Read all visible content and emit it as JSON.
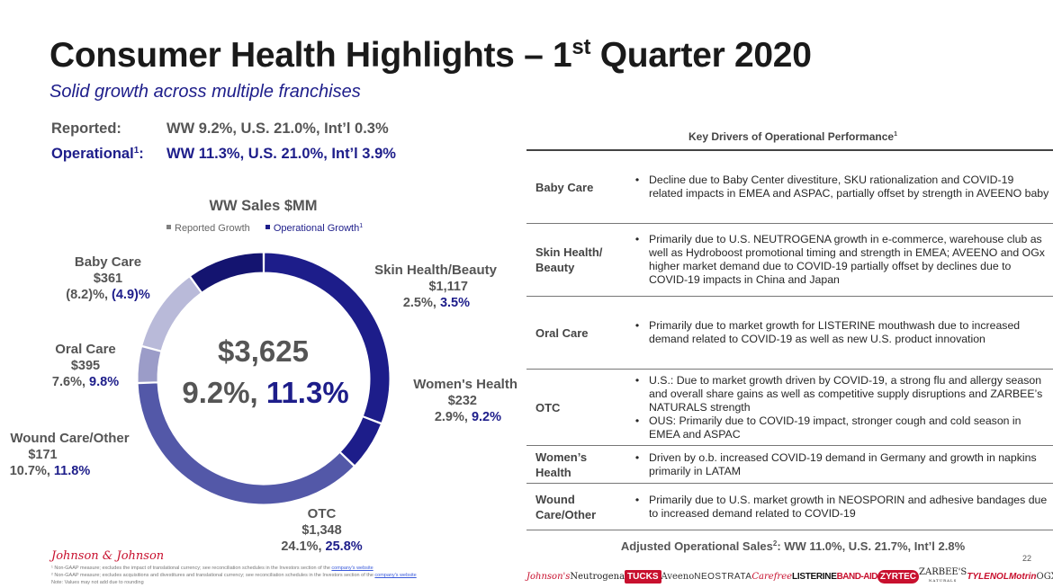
{
  "header": {
    "title_main": "Consumer Health Highlights – 1",
    "title_sup": "st",
    "title_end": " Quarter 2020",
    "subtitle": "Solid growth across multiple franchises"
  },
  "growth": {
    "reported_label": "Reported:",
    "reported_values": "WW 9.2%, U.S. 21.0%, Int’l 0.3%",
    "operational_label": "Operational",
    "operational_sup": "1",
    "operational_colon": ":",
    "operational_values": "WW 11.3%, U.S. 21.0%, Int’l 3.9%"
  },
  "chart_data": {
    "type": "pie",
    "title": "WW Sales $MM",
    "legend": [
      {
        "label": "Reported Growth",
        "color": "#808080"
      },
      {
        "label": "Operational Growth",
        "sup": "1",
        "color": "#1d1d8a"
      }
    ],
    "center_total": "$3,625",
    "center_reported": "9.2%,",
    "center_operational": "11.3%",
    "segments": [
      {
        "name": "Skin Health/Beauty",
        "value": 1117,
        "value_label": "$1,117",
        "reported": "2.5%,",
        "operational": "3.5%",
        "color": "#1d1d8a"
      },
      {
        "name": "Women's Health",
        "value": 232,
        "value_label": "$232",
        "reported": "2.9%,",
        "operational": "9.2%",
        "color": "#1d1d8a"
      },
      {
        "name": "OTC",
        "value": 1348,
        "value_label": "$1,348",
        "reported": "24.1%,",
        "operational": "25.8%",
        "color": "#5358a8"
      },
      {
        "name": "Wound Care/Other",
        "value": 171,
        "value_label": "$171",
        "reported": "10.7%,",
        "operational": "11.8%",
        "color": "#9b9cc8"
      },
      {
        "name": "Oral Care",
        "value": 395,
        "value_label": "$395",
        "reported": "7.6%,",
        "operational": "9.8%",
        "color": "#b9bad9"
      },
      {
        "name": "Baby Care",
        "value": 361,
        "value_label": "$361",
        "reported": "(8.2)%,",
        "operational": "(4.9)%",
        "color": "#141470"
      }
    ]
  },
  "drivers": {
    "title": "Key Drivers of Operational Performance",
    "title_sup": "1",
    "rows": [
      {
        "category": "Baby Care",
        "bullets": [
          "Decline due to Baby Center divestiture, SKU rationalization and COVID-19 related impacts in EMEA and ASPAC, partially offset by strength in AVEENO baby"
        ]
      },
      {
        "category": "Skin Health/ Beauty",
        "bullets": [
          "Primarily due to U.S. NEUTROGENA growth in e-commerce, warehouse club as well as Hydroboost promotional timing and strength in EMEA; AVEENO and OGx higher market demand due to COVID-19 partially offset by declines due to COVID-19 impacts in China and Japan"
        ]
      },
      {
        "category": "Oral Care",
        "bullets": [
          "Primarily due to market growth for LISTERINE mouthwash due to increased demand related to COVID-19 as well as new U.S. product innovation"
        ]
      },
      {
        "category": "OTC",
        "bullets": [
          "U.S.: Due to market growth driven by COVID-19, a strong flu and allergy season and overall share gains as well as competitive supply disruptions and ZARBEE’s NATURALS strength",
          "OUS: Primarily due to COVID-19 impact, stronger cough and cold season in EMEA and ASPAC"
        ]
      },
      {
        "category": "Women’s Health",
        "bullets": [
          "Driven by o.b. increased COVID-19 demand in Germany and growth in napkins primarily in LATAM"
        ]
      },
      {
        "category": "Wound Care/Other",
        "bullets": [
          "Primarily due to U.S. market growth in NEOSPORIN and adhesive bandages due to increased demand related to COVID-19"
        ]
      }
    ]
  },
  "adjusted": {
    "label": "Adjusted Operational Sales",
    "sup": "2",
    "values": ": WW 11.0%, U.S. 21.7%, Int’l 2.8%"
  },
  "page_number": "22",
  "footer": {
    "logo": "Johnson & Johnson",
    "fn1": "¹ Non-GAAP measure; excludes the impact of translational currency; see reconciliation schedules in the Investors section of the ",
    "fn2": "² Non-GAAP measure; excludes acquisitions and divestitures and translational currency; see reconciliation schedules in the Investors section of the ",
    "fn3": "Note: Values may not add due to rounding",
    "link": "company's website"
  },
  "brands": [
    "Johnson's",
    "Neutrogena",
    "TUCKS",
    "Aveeno",
    "NEOSTRATA",
    "Carefree",
    "LISTERINE",
    "BAND-AID",
    "ZYRTEC",
    "ZARBEE'S",
    "NATURALS",
    "TYLENOL",
    "Motrin",
    "OGX"
  ]
}
